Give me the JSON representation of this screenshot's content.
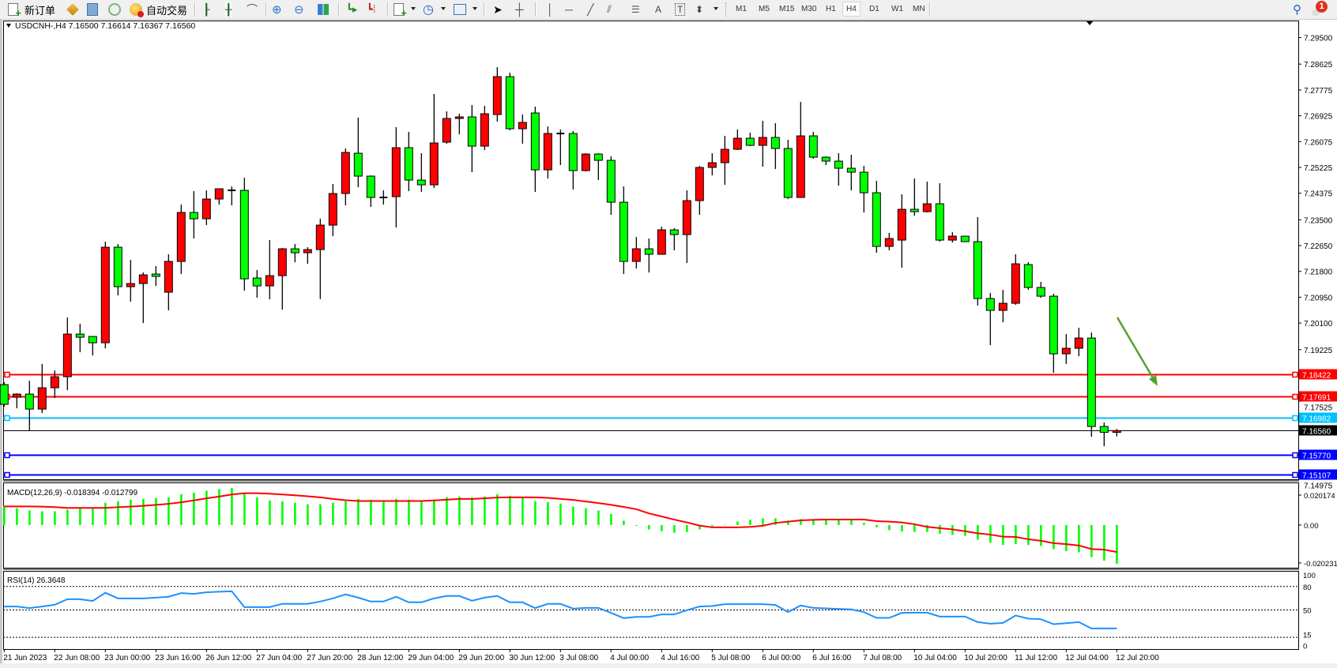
{
  "toolbar": {
    "new_order_label": "新订单",
    "auto_trading_label": "自动交易",
    "icons": [
      "new-order-icon",
      "market-watch-icon",
      "data-window-icon",
      "navigator-icon",
      "auto-trading-icon",
      "bar-chart-icon",
      "candlestick-icon",
      "line-chart-icon",
      "zoom-in-icon",
      "zoom-out-icon",
      "tile-windows-icon",
      "auto-scroll-icon",
      "chart-shift-icon",
      "indicators-icon",
      "periods-icon",
      "templates-icon",
      "cursor-icon",
      "crosshair-icon",
      "vertical-line-icon",
      "horizontal-line-icon",
      "trendline-icon",
      "equidistant-channel-icon",
      "fibonacci-icon",
      "text-icon",
      "text-label-icon",
      "arrows-icon",
      "search-icon",
      "notification-icon"
    ],
    "text_tool_label": "A",
    "timeframes": [
      "M1",
      "M5",
      "M15",
      "M30",
      "H1",
      "H4",
      "D1",
      "W1",
      "MN"
    ],
    "selected_timeframe": "H4",
    "notification_count": "1"
  },
  "chart": {
    "header": "USDCNH-,H4  7.16500 7.16614 7.16367 7.16560",
    "bullish_color": "#ff0000",
    "bearish_color": "#00ff00"
  },
  "chart_data": [
    {
      "type": "candlestick",
      "symbol": "USDCNH-",
      "timeframe": "H4",
      "ylim": [
        7.14956,
        7.3006
      ],
      "price_ticks": [
        "7.29500",
        "7.28625",
        "7.27775",
        "7.26925",
        "7.26075",
        "7.25225",
        "7.24375",
        "7.23500",
        "7.22650",
        "7.21800",
        "7.20950",
        "7.20100",
        "7.19225",
        "7.17525",
        "7.14975"
      ],
      "x_tick_every": 4,
      "x_tick_labels": [
        "21 Jun 2023",
        "22 Jun 08:00",
        "23 Jun 00:00",
        "23 Jun 16:00",
        "26 Jun 12:00",
        "27 Jun 04:00",
        "27 Jun 20:00",
        "28 Jun 12:00",
        "29 Jun 04:00",
        "29 Jun 20:00",
        "30 Jun 12:00",
        "3 Jul 08:00",
        "4 Jul 00:00",
        "4 Jul 16:00",
        "5 Jul 08:00",
        "6 Jul 00:00",
        "6 Jul 16:00",
        "7 Jul 08:00",
        "10 Jul 04:00",
        "10 Jul 20:00",
        "11 Jul 12:00",
        "12 Jul 04:00",
        "12 Jul 20:00"
      ],
      "ohlc_fields": [
        "open",
        "high",
        "low",
        "close"
      ],
      "ohlc": [
        [
          7.18073,
          7.18151,
          7.17345,
          7.17423
        ],
        [
          7.17657,
          7.17787,
          7.17293,
          7.17761
        ],
        [
          7.17761,
          7.18203,
          7.16565,
          7.17267
        ],
        [
          7.17267,
          7.18755,
          7.17137,
          7.17969
        ],
        [
          7.17969,
          7.18541,
          7.17631,
          7.18333
        ],
        [
          7.18333,
          7.20283,
          7.17891,
          7.19737
        ],
        [
          7.19737,
          7.20075,
          7.19139,
          7.19633
        ],
        [
          7.19659,
          7.19659,
          7.19035,
          7.19451
        ],
        [
          7.19451,
          7.22779,
          7.19269,
          7.22597
        ],
        [
          7.22597,
          7.22701,
          7.21011,
          7.21297
        ],
        [
          7.21297,
          7.22181,
          7.20803,
          7.21401
        ],
        [
          7.21401,
          7.21765,
          7.20101,
          7.21687
        ],
        [
          7.21713,
          7.21973,
          7.21323,
          7.21635
        ],
        [
          7.21115,
          7.22363,
          7.20517,
          7.22129
        ],
        [
          7.22129,
          7.24001,
          7.21713,
          7.23741
        ],
        [
          7.23741,
          7.24443,
          7.22883,
          7.23533
        ],
        [
          7.23533,
          7.24469,
          7.23325,
          7.24183
        ],
        [
          7.24183,
          7.24521,
          7.24001,
          7.24521
        ],
        [
          7.24469,
          7.24599,
          7.23975,
          7.24469
        ],
        [
          7.24469,
          7.24885,
          7.21167,
          7.21557
        ],
        [
          7.21583,
          7.21843,
          7.20933,
          7.21323
        ],
        [
          7.21323,
          7.22831,
          7.20881,
          7.21661
        ],
        [
          7.21661,
          7.22571,
          7.20543,
          7.22545
        ],
        [
          7.22545,
          7.22701,
          7.22103,
          7.22415
        ],
        [
          7.22415,
          7.22597,
          7.22051,
          7.22519
        ],
        [
          7.22519,
          7.23533,
          7.20889,
          7.23325
        ],
        [
          7.23325,
          7.24677,
          7.22961,
          7.24365
        ],
        [
          7.24365,
          7.25847,
          7.23975,
          7.25717
        ],
        [
          7.25691,
          7.26861,
          7.24573,
          7.24937
        ],
        [
          7.24937,
          7.24963,
          7.23923,
          7.24235
        ],
        [
          7.24235,
          7.24469,
          7.24001,
          7.24235
        ],
        [
          7.24261,
          7.26549,
          7.23247,
          7.25873
        ],
        [
          7.25873,
          7.26393,
          7.24443,
          7.24807
        ],
        [
          7.24807,
          7.25691,
          7.24417,
          7.24651
        ],
        [
          7.24651,
          7.27641,
          7.24547,
          7.26029
        ],
        [
          7.26055,
          7.27069,
          7.26003,
          7.26835
        ],
        [
          7.26835,
          7.26991,
          7.26315,
          7.26887
        ],
        [
          7.26887,
          7.27277,
          7.25067,
          7.25925
        ],
        [
          7.25925,
          7.27251,
          7.25795,
          7.26991
        ],
        [
          7.26965,
          7.28525,
          7.26731,
          7.28213
        ],
        [
          7.28213,
          7.28343,
          7.26445,
          7.26497
        ],
        [
          7.26497,
          7.26965,
          7.26003,
          7.26705
        ],
        [
          7.27017,
          7.27225,
          7.24417,
          7.25145
        ],
        [
          7.25145,
          7.26575,
          7.24859,
          7.26341
        ],
        [
          7.26341,
          7.26471,
          7.25301,
          7.26341
        ],
        [
          7.26341,
          7.26419,
          7.24495,
          7.25119
        ],
        [
          7.25119,
          7.25691,
          7.25093,
          7.25665
        ],
        [
          7.25665,
          7.25691,
          7.24807,
          7.25457
        ],
        [
          7.25457,
          7.25587,
          7.23663,
          7.24079
        ],
        [
          7.24079,
          7.24599,
          7.21713,
          7.22129
        ],
        [
          7.22129,
          7.22935,
          7.21895,
          7.22545
        ],
        [
          7.22545,
          7.22883,
          7.21765,
          7.22363
        ],
        [
          7.22363,
          7.23273,
          7.22363,
          7.23169
        ],
        [
          7.23169,
          7.23221,
          7.22493,
          7.23013
        ],
        [
          7.23013,
          7.24469,
          7.22077,
          7.24131
        ],
        [
          7.24131,
          7.25275,
          7.23663,
          7.25223
        ],
        [
          7.25223,
          7.25691,
          7.24963,
          7.25379
        ],
        [
          7.25379,
          7.26263,
          7.24651,
          7.25821
        ],
        [
          7.25821,
          7.26471,
          7.25795,
          7.26185
        ],
        [
          7.26185,
          7.26367,
          7.25925,
          7.25951
        ],
        [
          7.25951,
          7.26757,
          7.25249,
          7.26211
        ],
        [
          7.26211,
          7.26679,
          7.25171,
          7.25847
        ],
        [
          7.25847,
          7.26133,
          7.24183,
          7.24235
        ],
        [
          7.24235,
          7.27381,
          7.24235,
          7.26263
        ],
        [
          7.26263,
          7.26393,
          7.25509,
          7.25561
        ],
        [
          7.25561,
          7.25587,
          7.25301,
          7.25431
        ],
        [
          7.25431,
          7.25691,
          7.24625,
          7.25197
        ],
        [
          7.25197,
          7.25639,
          7.24469,
          7.25067
        ],
        [
          7.25067,
          7.25275,
          7.23741,
          7.24391
        ],
        [
          7.24391,
          7.24781,
          7.22415,
          7.22623
        ],
        [
          7.22623,
          7.23065,
          7.22493,
          7.22883
        ],
        [
          7.22831,
          7.24339,
          7.21921,
          7.23845
        ],
        [
          7.23845,
          7.24859,
          7.23637,
          7.23767
        ],
        [
          7.23767,
          7.24755,
          7.23741,
          7.24027
        ],
        [
          7.24027,
          7.24703,
          7.22779,
          7.22831
        ],
        [
          7.22831,
          7.23091,
          7.22753,
          7.22961
        ],
        [
          7.22961,
          7.22961,
          7.22779,
          7.22779
        ],
        [
          7.22779,
          7.23585,
          7.20673,
          7.20907
        ],
        [
          7.20907,
          7.21089,
          7.19373,
          7.20517
        ],
        [
          7.20517,
          7.21193,
          7.20127,
          7.20751
        ],
        [
          7.20751,
          7.22363,
          7.20699,
          7.22051
        ],
        [
          7.22025,
          7.22103,
          7.21193,
          7.21271
        ],
        [
          7.21271,
          7.21453,
          7.20933,
          7.20985
        ],
        [
          7.20985,
          7.21063,
          7.18463,
          7.19087
        ],
        [
          7.19087,
          7.19737,
          7.18749,
          7.19269
        ],
        [
          7.19269,
          7.19945,
          7.19009,
          7.19607
        ],
        [
          7.19607,
          7.19789,
          7.16357,
          7.16695
        ],
        [
          7.16695,
          7.16825,
          7.16045,
          7.165
        ],
        [
          7.165,
          7.16614,
          7.16367,
          7.1656
        ]
      ],
      "levels": [
        {
          "price": "7.18422",
          "color": "#ff0000",
          "text_color": "#ffffff"
        },
        {
          "price": "7.17691",
          "color": "#ff0000",
          "text_color": "#ffffff"
        },
        {
          "price": "7.16982",
          "color": "#00bfff",
          "text_color": "#ffffff"
        },
        {
          "price": "7.16560",
          "color": "#000000",
          "text_color": "#ffffff",
          "bid_line": true
        },
        {
          "price": "7.15770",
          "color": "#0000ff",
          "text_color": "#ffffff"
        },
        {
          "price": "7.15107",
          "color": "#0000ff",
          "text_color": "#ffffff"
        }
      ],
      "annotation_arrow_color": "#55a02e"
    },
    {
      "type": "bar+line",
      "label": "MACD(12,26,9) -0.018394 -0.012799",
      "ylim": [
        -0.020231,
        0.020174
      ],
      "y_tick_labels": [
        "0.020174",
        "0.00",
        "-0.020231"
      ],
      "histogram_color": "#00ff00",
      "signal_color": "#ff0000",
      "main": [
        0.00895,
        0.00797,
        0.00687,
        0.0065,
        0.0065,
        0.00723,
        0.00797,
        0.00772,
        0.01054,
        0.01128,
        0.01201,
        0.01238,
        0.01275,
        0.01312,
        0.01459,
        0.01533,
        0.01631,
        0.01704,
        0.01753,
        0.01533,
        0.01312,
        0.01165,
        0.01128,
        0.01054,
        0.00981,
        0.00981,
        0.01054,
        0.01128,
        0.01238,
        0.01201,
        0.01165,
        0.01238,
        0.01201,
        0.01165,
        0.01165,
        0.01312,
        0.01349,
        0.01312,
        0.01349,
        0.01459,
        0.01385,
        0.01275,
        0.01128,
        0.01091,
        0.01018,
        0.0087,
        0.00797,
        0.00687,
        0.00527,
        0.00208,
        -0.00037,
        -0.00208,
        -0.00294,
        -0.00368,
        -0.00331,
        -0.00208,
        -0.00061,
        0.00012,
        0.00172,
        0.00257,
        0.00319,
        0.00319,
        0.00208,
        0.00282,
        0.00282,
        0.00282,
        0.00257,
        0.00257,
        0.00098,
        -0.0011,
        -0.00245,
        -0.00307,
        -0.00331,
        -0.00331,
        -0.00417,
        -0.00478,
        -0.00515,
        -0.00699,
        -0.00846,
        -0.00944,
        -0.00907,
        -0.00944,
        -0.00993,
        -0.0114,
        -0.01238,
        -0.01287,
        -0.0152,
        -0.01692,
        -0.018394
      ],
      "signal": [
        0.00883,
        0.00883,
        0.00883,
        0.0087,
        0.00846,
        0.00809,
        0.00809,
        0.00809,
        0.00809,
        0.00846,
        0.0087,
        0.00907,
        0.00956,
        0.01005,
        0.01079,
        0.01165,
        0.01263,
        0.01349,
        0.01447,
        0.01508,
        0.01508,
        0.01483,
        0.01447,
        0.0141,
        0.01361,
        0.01312,
        0.01238,
        0.01177,
        0.0114,
        0.0114,
        0.0114,
        0.0114,
        0.0114,
        0.0114,
        0.01165,
        0.01201,
        0.01238,
        0.01238,
        0.01263,
        0.013,
        0.01312,
        0.01312,
        0.01312,
        0.01287,
        0.01238,
        0.01189,
        0.01116,
        0.01042,
        0.00956,
        0.00858,
        0.00748,
        0.00552,
        0.00405,
        0.00257,
        0.00123,
        -0.00025,
        -0.0011,
        -0.0011,
        -0.0011,
        -0.00086,
        -0.00037,
        0.00098,
        0.00159,
        0.00221,
        0.00245,
        0.00257,
        0.00257,
        0.00257,
        0.00257,
        0.00184,
        0.00159,
        0.00123,
        0.00037,
        -0.00086,
        -0.00147,
        -0.00208,
        -0.00294,
        -0.00392,
        -0.00454,
        -0.00552,
        -0.00564,
        -0.00674,
        -0.00748,
        -0.00858,
        -0.00907,
        -0.00969,
        -0.0114,
        -0.01165,
        -0.012799
      ]
    },
    {
      "type": "line",
      "label": "RSI(14) 26.3648",
      "ylim": [
        0,
        100
      ],
      "y_tick_labels": [
        "100",
        "80",
        "50",
        "15",
        "0"
      ],
      "levels": [
        80,
        50,
        15
      ],
      "line_color": "#1e90ff",
      "values": [
        54.4,
        54.4,
        52.4,
        54.4,
        56.7,
        63.8,
        63.8,
        61.5,
        71.9,
        64.8,
        64.8,
        64.8,
        65.8,
        66.9,
        71.6,
        70.6,
        72.6,
        73.3,
        73.9,
        53.7,
        53.7,
        53.7,
        57.8,
        57.8,
        57.8,
        60.8,
        64.8,
        69.9,
        65.8,
        60.8,
        60.8,
        66.9,
        59.8,
        59.8,
        64.8,
        67.9,
        67.9,
        61.8,
        65.8,
        67.9,
        59.8,
        59.8,
        52.4,
        57.8,
        57.8,
        51.7,
        52.7,
        52.7,
        46.3,
        39.6,
        41.2,
        41.2,
        44.3,
        44.3,
        49.7,
        54.4,
        55.1,
        57.4,
        57.4,
        57.4,
        57.4,
        56.4,
        47.3,
        55.7,
        52.7,
        52.0,
        51.3,
        50.7,
        47.3,
        39.9,
        39.9,
        46.3,
        46.6,
        46.6,
        41.6,
        41.6,
        41.6,
        34.5,
        32.5,
        33.5,
        42.9,
        38.9,
        38.2,
        31.8,
        33.1,
        34.5,
        26.4,
        26.4,
        26.3648
      ]
    }
  ]
}
